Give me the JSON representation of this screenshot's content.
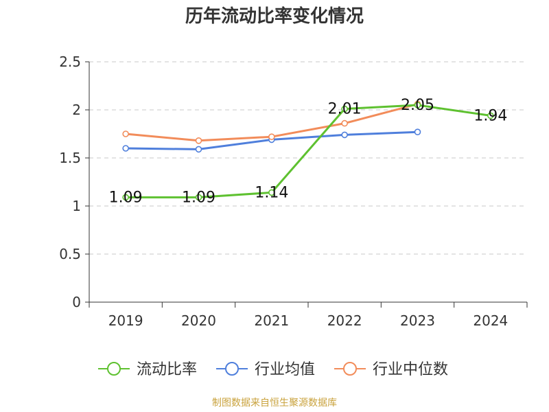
{
  "chart_data": {
    "type": "line",
    "title": "历年流动比率变化情况",
    "categories": [
      "2019",
      "2020",
      "2021",
      "2022",
      "2023",
      "2024"
    ],
    "ylim": [
      0,
      2.5
    ],
    "yticks": [
      0,
      0.5,
      1,
      1.5,
      2,
      2.5
    ],
    "ytick_labels": [
      "0",
      "0.5",
      "1",
      "1.5",
      "2",
      "2.5"
    ],
    "grid": true,
    "legend_position": "bottom",
    "series": [
      {
        "name": "流动比率",
        "color": "#5ec130",
        "values": [
          1.09,
          1.09,
          1.14,
          2.01,
          2.05,
          1.94
        ],
        "labels": [
          "1.09",
          "1.09",
          "1.14",
          "2.01",
          "2.05",
          "1.94"
        ]
      },
      {
        "name": "行业均值",
        "color": "#4f7fdc",
        "values": [
          1.6,
          1.59,
          1.69,
          1.74,
          1.77,
          null
        ]
      },
      {
        "name": "行业中位数",
        "color": "#f28c5a",
        "values": [
          1.75,
          1.68,
          1.72,
          1.86,
          2.06,
          null
        ]
      }
    ]
  },
  "footer": {
    "source": "制图数据来自恒生聚源数据库"
  }
}
